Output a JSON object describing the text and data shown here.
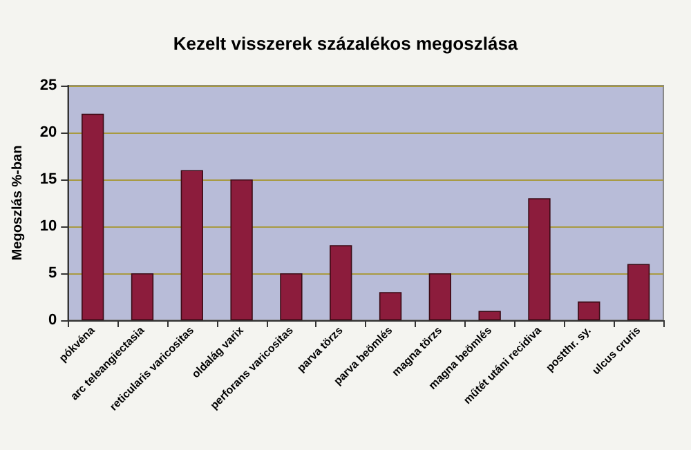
{
  "chart_data": {
    "type": "bar",
    "title": "Kezelt visszerek százalékos megoszlása",
    "ylabel": "Megoszlás %-ban",
    "categories": [
      "pókvéna",
      "arc teleangiectasia",
      "reticularis varicositas",
      "oldalág varix",
      "perforans varicositas",
      "parva törzs",
      "parva beömlés",
      "magna törzs",
      "magna beömlés",
      "műtét utáni recidiva",
      "postthr. sy.",
      "ulcus cruris"
    ],
    "values": [
      22,
      5,
      16,
      15,
      5,
      8,
      3,
      5,
      1,
      13,
      2,
      6
    ],
    "color": "#8c1c3c",
    "ylim": [
      0,
      25
    ],
    "yticks": [
      0,
      5,
      10,
      15,
      20,
      25
    ],
    "grid": "y"
  }
}
